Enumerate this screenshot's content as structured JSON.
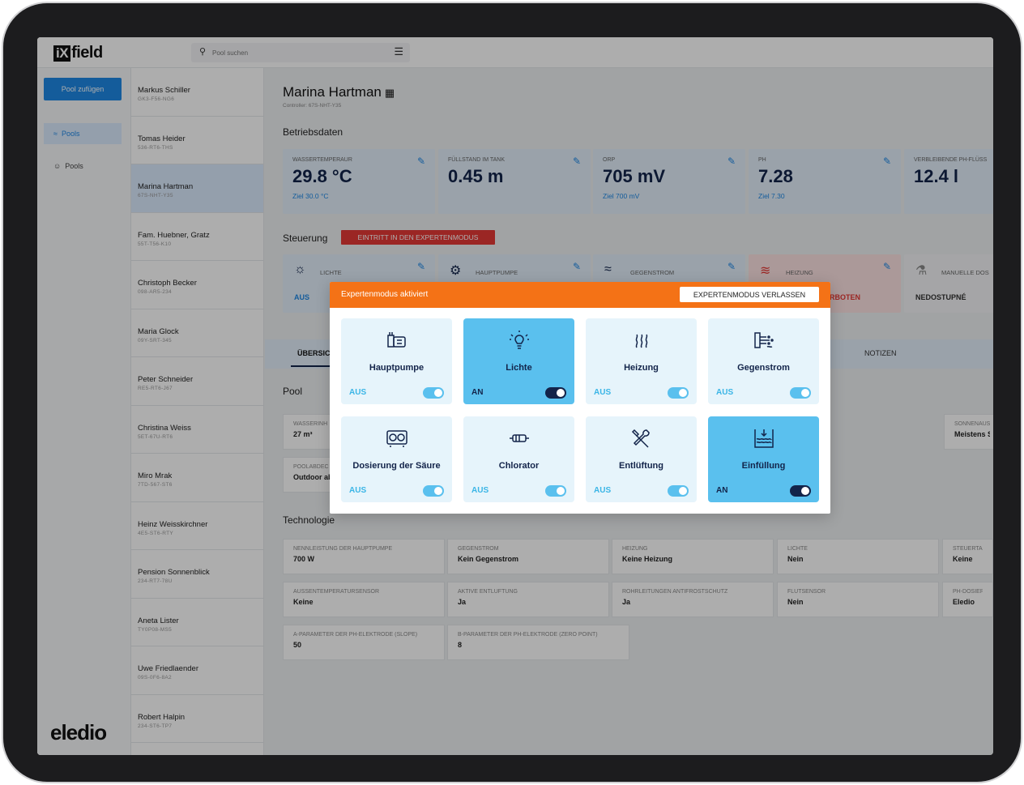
{
  "app": {
    "logo_prefix": "iX",
    "logo_suffix": "field",
    "brand": "eledio"
  },
  "search": {
    "placeholder": "Pool suchen"
  },
  "leftnav": {
    "add_pool": "Pool zufügen",
    "items": [
      {
        "label": "Pools"
      },
      {
        "label": "Pools"
      }
    ]
  },
  "customers": [
    {
      "name": "Markus Schiller",
      "code": "GK3-F56-NG6"
    },
    {
      "name": "Tomas Heider",
      "code": "536-RT6-THS"
    },
    {
      "name": "Marina Hartman",
      "code": "67S-NHT-Y35"
    },
    {
      "name": "Fam. Huebner, Gratz",
      "code": "55T-T56-K10"
    },
    {
      "name": "Christoph Becker",
      "code": "098-AR5-234"
    },
    {
      "name": "Maria Glock",
      "code": "09Y-SRT-345"
    },
    {
      "name": "Peter Schneider",
      "code": "RE5-RT6-J67"
    },
    {
      "name": "Christina Weiss",
      "code": "5ET-67U-RT6"
    },
    {
      "name": "Miro Mrak",
      "code": "7TD-567-ST6"
    },
    {
      "name": "Heinz Weisskirchner",
      "code": "4E5-ST6-RTY"
    },
    {
      "name": "Pension Sonnenblick",
      "code": "234-RT7-78U"
    },
    {
      "name": "Aneta Lister",
      "code": "TY0P08-MS5"
    },
    {
      "name": "Uwe Friedlaender",
      "code": "09S-0F6-8A2"
    },
    {
      "name": "Robert Halpin",
      "code": "234-ST6-TP7"
    }
  ],
  "pool": {
    "title": "Marina Hartman",
    "controller": "Controller: 67S-NHT-Y35"
  },
  "sections": {
    "operating": "Betriebsdaten",
    "control": "Steuerung",
    "pool": "Pool",
    "technology": "Technologie"
  },
  "expert_button": "EINTRITT IN DEN EXPERTENMODUS",
  "metrics": [
    {
      "label": "WASSERTEMPERAUR",
      "value": "29.8 °C",
      "target": "Ziel 30.0 °C"
    },
    {
      "label": "FÜLLSTAND IM TANK",
      "value": "0.45 m",
      "target": ""
    },
    {
      "label": "ORP",
      "value": "705 mV",
      "target": "Ziel 700 mV"
    },
    {
      "label": "PH",
      "value": "7.28",
      "target": "Ziel 7.30"
    },
    {
      "label": "VERBLEIBENDE PH-FLÜSS",
      "value": "12.4 l",
      "target": ""
    }
  ],
  "controls": [
    {
      "label": "LICHTE",
      "status": "AUS"
    },
    {
      "label": "HAUPTPUMPE",
      "status": ""
    },
    {
      "label": "GEGENSTROM",
      "status": ""
    },
    {
      "label": "HEIZUNG",
      "status": "RBOTEN"
    },
    {
      "label": "MANUELLE DOS",
      "status": "NEDOSTUPNÉ"
    }
  ],
  "tabs": [
    {
      "label": "ÜBERSIC"
    },
    {
      "label": "NOTIZEN"
    }
  ],
  "pool_props": [
    {
      "label": "WASSERINH",
      "value": "27 m³"
    },
    {
      "label": "POOLABDEC",
      "value": "Outdoor ab"
    },
    {
      "label": "SONNENAUS",
      "value": "Meistens S"
    }
  ],
  "tech": [
    {
      "label": "NENNLEISTUNG DER HAUPTPUMPE",
      "value": "700 W"
    },
    {
      "label": "GEGENSTROM",
      "value": "Kein Gegenstrom"
    },
    {
      "label": "HEIZUNG",
      "value": "Keine Heizung"
    },
    {
      "label": "LICHTE",
      "value": "Nein"
    },
    {
      "label": "STEUERTAS",
      "value": "Keine"
    },
    {
      "label": "AUSSENTEMPERATURSENSOR",
      "value": "Keine"
    },
    {
      "label": "AKTIVE ENTLÜFTUNG",
      "value": "Ja"
    },
    {
      "label": "ROHRLEITUNGEN ANTIFROSTSCHUTZ",
      "value": "Ja"
    },
    {
      "label": "FLUTSENSOR",
      "value": "Nein"
    },
    {
      "label": "PH-DOSIERP",
      "value": "Eledio"
    },
    {
      "label": "A-PARAMETER DER PH-ELEKTRODE (SLOPE)",
      "value": "50"
    },
    {
      "label": "B-PARAMETER DER PH-ELEKTRODE (ZERO POINT)",
      "value": "8"
    }
  ],
  "modal": {
    "title": "Expertenmodus aktiviert",
    "exit": "EXPERTENMODUS VERLASSEN",
    "tiles": [
      {
        "name": "Hauptpumpe",
        "status": "AUS",
        "on": false,
        "icon": "pump-icon"
      },
      {
        "name": "Lichte",
        "status": "AN",
        "on": true,
        "icon": "lightbulb-icon"
      },
      {
        "name": "Heizung",
        "status": "AUS",
        "on": false,
        "icon": "heat-icon"
      },
      {
        "name": "Gegenstrom",
        "status": "AUS",
        "on": false,
        "icon": "counter-current-icon"
      },
      {
        "name": "Dosierung der Säure",
        "status": "AUS",
        "on": false,
        "icon": "dosing-icon"
      },
      {
        "name": "Chlorator",
        "status": "AUS",
        "on": false,
        "icon": "chlorinator-icon"
      },
      {
        "name": "Entlüftung",
        "status": "AUS",
        "on": false,
        "icon": "tools-icon"
      },
      {
        "name": "Einfüllung",
        "status": "AN",
        "on": true,
        "icon": "fill-icon"
      }
    ]
  },
  "colors": {
    "accent": "#1e88e5",
    "orange": "#f47216",
    "danger": "#e53935",
    "navy": "#13244a",
    "tile_on": "#5ac0ee"
  }
}
